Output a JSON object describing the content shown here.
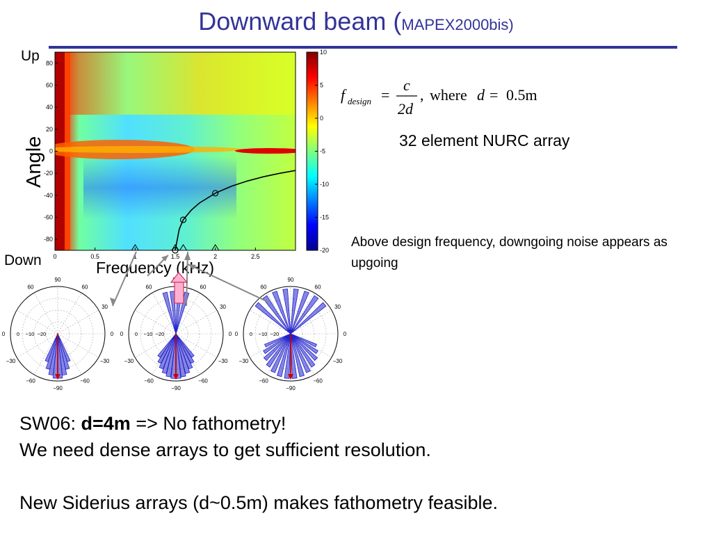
{
  "slide": {
    "title_main": "Downward beam (",
    "title_sub": "MAPEX2000bis)",
    "array_label": "32 element NURC array",
    "note": "Above design frequency, downgoing noise appears as upgoing",
    "formula": {
      "f": "f",
      "sub": "design",
      "eq": "=",
      "num": "c",
      "den": "2d",
      "comma": ",",
      "where": "where",
      "d": "d",
      "eq2": "=",
      "val": "0.5m"
    },
    "bullets": {
      "l1_prefix": "SW06: ",
      "l1_bold": "d=4m",
      "l1_rest": "  => No fathometry!",
      "l2": "We need dense arrays to get sufficient resolution.",
      "l4": "New Siderius arrays (d~0.5m) makes fathometry feasible."
    }
  },
  "chart_data": [
    {
      "type": "heatmap",
      "xlabel": "Frequency (kHz)",
      "ylabel": "Angle",
      "y_top_label": "Up",
      "y_bottom_label": "Down",
      "x_range": [
        0,
        3.0
      ],
      "y_range": [
        -90,
        90
      ],
      "x_ticks": [
        0,
        0.5,
        1,
        1.5,
        2,
        2.5
      ],
      "x_tick_labels": [
        "0",
        "0.5",
        "1",
        "1.5",
        "2",
        "2.5"
      ],
      "y_ticks": [
        80,
        60,
        40,
        20,
        0,
        -20,
        -40,
        -60,
        -80
      ],
      "colorbar": {
        "range": [
          -20,
          10
        ],
        "ticks": [
          10,
          5,
          0,
          -5,
          -10,
          -15,
          -20
        ],
        "colormap": "jet"
      },
      "design_curve": {
        "color": "#000000",
        "x": [
          1.5,
          1.55,
          1.6,
          1.7,
          1.8,
          2.0,
          2.2,
          2.4,
          2.6,
          2.8,
          3.0
        ],
        "y": [
          -90,
          -70.8,
          -62.3,
          -53.5,
          -47.1,
          -38.1,
          -31.8,
          -27.0,
          -23.2,
          -20.1,
          -17.5
        ]
      },
      "circle_markers": {
        "x": [
          1.5,
          1.6,
          2.0
        ],
        "y": [
          -90,
          -62.3,
          -38.1
        ]
      },
      "triangle_markers": {
        "x": [
          1.0,
          1.5,
          1.6,
          2.0
        ],
        "y": [
          -90,
          -90,
          -90,
          -90
        ]
      }
    },
    {
      "type": "polar",
      "count": 3,
      "angle_labels": [
        "90",
        "60",
        "60",
        "30",
        "0",
        "0",
        "−30",
        "−30",
        "−60",
        "−60",
        "−90"
      ],
      "radial_labels": [
        "0",
        "−10",
        "−20"
      ],
      "beam_color": "#2222cc",
      "arrow_color": "#cc0000"
    }
  ]
}
